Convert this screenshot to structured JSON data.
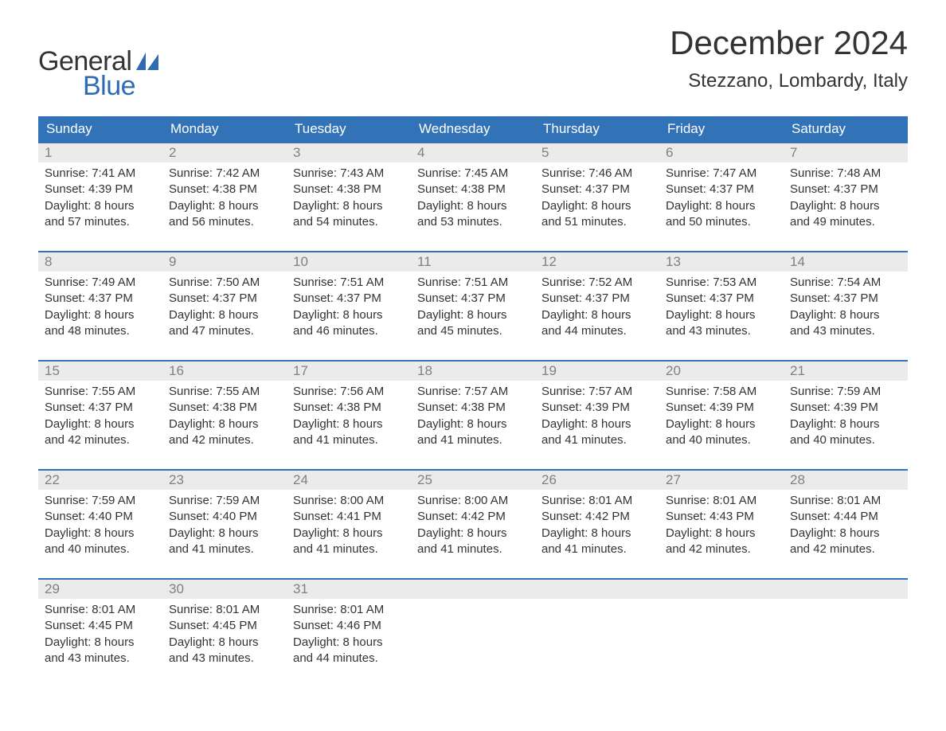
{
  "logo": {
    "text1": "General",
    "text2": "Blue",
    "text1_color": "#333333",
    "text2_color": "#2d6bb4",
    "sail_color": "#2d6bb4"
  },
  "title": "December 2024",
  "location": "Stezzano, Lombardy, Italy",
  "title_color": "#333333",
  "location_color": "#333333",
  "header_bg": "#3273b8",
  "header_fg": "#ffffff",
  "week_border_color": "#3273b8",
  "daynum_bg": "#ebebeb",
  "daynum_fg": "#808080",
  "body_text_color": "#333333",
  "background_color": "#ffffff",
  "days_of_week": [
    "Sunday",
    "Monday",
    "Tuesday",
    "Wednesday",
    "Thursday",
    "Friday",
    "Saturday"
  ],
  "weeks": [
    [
      {
        "n": "1",
        "sr": "Sunrise: 7:41 AM",
        "ss": "Sunset: 4:39 PM",
        "d1": "Daylight: 8 hours",
        "d2": "and 57 minutes."
      },
      {
        "n": "2",
        "sr": "Sunrise: 7:42 AM",
        "ss": "Sunset: 4:38 PM",
        "d1": "Daylight: 8 hours",
        "d2": "and 56 minutes."
      },
      {
        "n": "3",
        "sr": "Sunrise: 7:43 AM",
        "ss": "Sunset: 4:38 PM",
        "d1": "Daylight: 8 hours",
        "d2": "and 54 minutes."
      },
      {
        "n": "4",
        "sr": "Sunrise: 7:45 AM",
        "ss": "Sunset: 4:38 PM",
        "d1": "Daylight: 8 hours",
        "d2": "and 53 minutes."
      },
      {
        "n": "5",
        "sr": "Sunrise: 7:46 AM",
        "ss": "Sunset: 4:37 PM",
        "d1": "Daylight: 8 hours",
        "d2": "and 51 minutes."
      },
      {
        "n": "6",
        "sr": "Sunrise: 7:47 AM",
        "ss": "Sunset: 4:37 PM",
        "d1": "Daylight: 8 hours",
        "d2": "and 50 minutes."
      },
      {
        "n": "7",
        "sr": "Sunrise: 7:48 AM",
        "ss": "Sunset: 4:37 PM",
        "d1": "Daylight: 8 hours",
        "d2": "and 49 minutes."
      }
    ],
    [
      {
        "n": "8",
        "sr": "Sunrise: 7:49 AM",
        "ss": "Sunset: 4:37 PM",
        "d1": "Daylight: 8 hours",
        "d2": "and 48 minutes."
      },
      {
        "n": "9",
        "sr": "Sunrise: 7:50 AM",
        "ss": "Sunset: 4:37 PM",
        "d1": "Daylight: 8 hours",
        "d2": "and 47 minutes."
      },
      {
        "n": "10",
        "sr": "Sunrise: 7:51 AM",
        "ss": "Sunset: 4:37 PM",
        "d1": "Daylight: 8 hours",
        "d2": "and 46 minutes."
      },
      {
        "n": "11",
        "sr": "Sunrise: 7:51 AM",
        "ss": "Sunset: 4:37 PM",
        "d1": "Daylight: 8 hours",
        "d2": "and 45 minutes."
      },
      {
        "n": "12",
        "sr": "Sunrise: 7:52 AM",
        "ss": "Sunset: 4:37 PM",
        "d1": "Daylight: 8 hours",
        "d2": "and 44 minutes."
      },
      {
        "n": "13",
        "sr": "Sunrise: 7:53 AM",
        "ss": "Sunset: 4:37 PM",
        "d1": "Daylight: 8 hours",
        "d2": "and 43 minutes."
      },
      {
        "n": "14",
        "sr": "Sunrise: 7:54 AM",
        "ss": "Sunset: 4:37 PM",
        "d1": "Daylight: 8 hours",
        "d2": "and 43 minutes."
      }
    ],
    [
      {
        "n": "15",
        "sr": "Sunrise: 7:55 AM",
        "ss": "Sunset: 4:37 PM",
        "d1": "Daylight: 8 hours",
        "d2": "and 42 minutes."
      },
      {
        "n": "16",
        "sr": "Sunrise: 7:55 AM",
        "ss": "Sunset: 4:38 PM",
        "d1": "Daylight: 8 hours",
        "d2": "and 42 minutes."
      },
      {
        "n": "17",
        "sr": "Sunrise: 7:56 AM",
        "ss": "Sunset: 4:38 PM",
        "d1": "Daylight: 8 hours",
        "d2": "and 41 minutes."
      },
      {
        "n": "18",
        "sr": "Sunrise: 7:57 AM",
        "ss": "Sunset: 4:38 PM",
        "d1": "Daylight: 8 hours",
        "d2": "and 41 minutes."
      },
      {
        "n": "19",
        "sr": "Sunrise: 7:57 AM",
        "ss": "Sunset: 4:39 PM",
        "d1": "Daylight: 8 hours",
        "d2": "and 41 minutes."
      },
      {
        "n": "20",
        "sr": "Sunrise: 7:58 AM",
        "ss": "Sunset: 4:39 PM",
        "d1": "Daylight: 8 hours",
        "d2": "and 40 minutes."
      },
      {
        "n": "21",
        "sr": "Sunrise: 7:59 AM",
        "ss": "Sunset: 4:39 PM",
        "d1": "Daylight: 8 hours",
        "d2": "and 40 minutes."
      }
    ],
    [
      {
        "n": "22",
        "sr": "Sunrise: 7:59 AM",
        "ss": "Sunset: 4:40 PM",
        "d1": "Daylight: 8 hours",
        "d2": "and 40 minutes."
      },
      {
        "n": "23",
        "sr": "Sunrise: 7:59 AM",
        "ss": "Sunset: 4:40 PM",
        "d1": "Daylight: 8 hours",
        "d2": "and 41 minutes."
      },
      {
        "n": "24",
        "sr": "Sunrise: 8:00 AM",
        "ss": "Sunset: 4:41 PM",
        "d1": "Daylight: 8 hours",
        "d2": "and 41 minutes."
      },
      {
        "n": "25",
        "sr": "Sunrise: 8:00 AM",
        "ss": "Sunset: 4:42 PM",
        "d1": "Daylight: 8 hours",
        "d2": "and 41 minutes."
      },
      {
        "n": "26",
        "sr": "Sunrise: 8:01 AM",
        "ss": "Sunset: 4:42 PM",
        "d1": "Daylight: 8 hours",
        "d2": "and 41 minutes."
      },
      {
        "n": "27",
        "sr": "Sunrise: 8:01 AM",
        "ss": "Sunset: 4:43 PM",
        "d1": "Daylight: 8 hours",
        "d2": "and 42 minutes."
      },
      {
        "n": "28",
        "sr": "Sunrise: 8:01 AM",
        "ss": "Sunset: 4:44 PM",
        "d1": "Daylight: 8 hours",
        "d2": "and 42 minutes."
      }
    ],
    [
      {
        "n": "29",
        "sr": "Sunrise: 8:01 AM",
        "ss": "Sunset: 4:45 PM",
        "d1": "Daylight: 8 hours",
        "d2": "and 43 minutes."
      },
      {
        "n": "30",
        "sr": "Sunrise: 8:01 AM",
        "ss": "Sunset: 4:45 PM",
        "d1": "Daylight: 8 hours",
        "d2": "and 43 minutes."
      },
      {
        "n": "31",
        "sr": "Sunrise: 8:01 AM",
        "ss": "Sunset: 4:46 PM",
        "d1": "Daylight: 8 hours",
        "d2": "and 44 minutes."
      },
      {
        "empty": true
      },
      {
        "empty": true
      },
      {
        "empty": true
      },
      {
        "empty": true
      }
    ]
  ]
}
